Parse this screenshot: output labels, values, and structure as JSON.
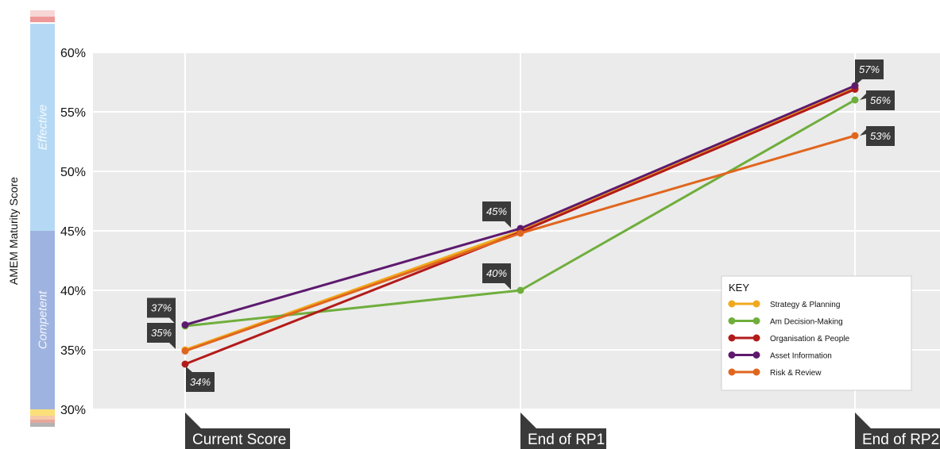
{
  "chart_data": {
    "type": "line",
    "ylabel": "AMEM Maturity Score",
    "categories": [
      "Current Score",
      "End of RP1",
      "End of RP2"
    ],
    "ylim": [
      30,
      60
    ],
    "yticks": [
      "30%",
      "35%",
      "40%",
      "45%",
      "50%",
      "55%",
      "60%"
    ],
    "grid": true,
    "maturity_bands": [
      {
        "label": "Competent",
        "from": 30,
        "to": 45,
        "color": "#9fb3e0"
      },
      {
        "label": "Effective",
        "from": 45,
        "to": 62.4,
        "color": "#b5d9f4"
      }
    ],
    "series": [
      {
        "name": "Strategy & Planning",
        "color": "#f0a81c",
        "values": [
          35.0,
          45.0,
          57.0
        ]
      },
      {
        "name": "Am Decision-Making",
        "color": "#6fae3c",
        "values": [
          37.0,
          40.0,
          56.0
        ]
      },
      {
        "name": "Organisation & People",
        "color": "#b31b1b",
        "values": [
          33.8,
          44.9,
          56.9
        ]
      },
      {
        "name": "Asset Information",
        "color": "#5e1a6e",
        "values": [
          37.1,
          45.2,
          57.2
        ]
      },
      {
        "name": "Risk & Review",
        "color": "#e0661f",
        "values": [
          34.9,
          44.8,
          53.0
        ]
      }
    ],
    "data_labels": [
      {
        "text": "37%",
        "category": 0,
        "value": 37.1,
        "side": "left"
      },
      {
        "text": "35%",
        "category": 0,
        "value": 35.0,
        "side": "left"
      },
      {
        "text": "34%",
        "category": 0,
        "value": 33.8,
        "side": "below"
      },
      {
        "text": "45%",
        "category": 1,
        "value": 45.2,
        "side": "left"
      },
      {
        "text": "40%",
        "category": 1,
        "value": 40.0,
        "side": "left"
      },
      {
        "text": "57%",
        "category": 2,
        "value": 57.2,
        "side": "above"
      },
      {
        "text": "56%",
        "category": 2,
        "value": 56.0,
        "side": "right"
      },
      {
        "text": "53%",
        "category": 2,
        "value": 53.0,
        "side": "right"
      }
    ],
    "legend": {
      "title": "KEY",
      "placement": "bottom-right"
    }
  }
}
